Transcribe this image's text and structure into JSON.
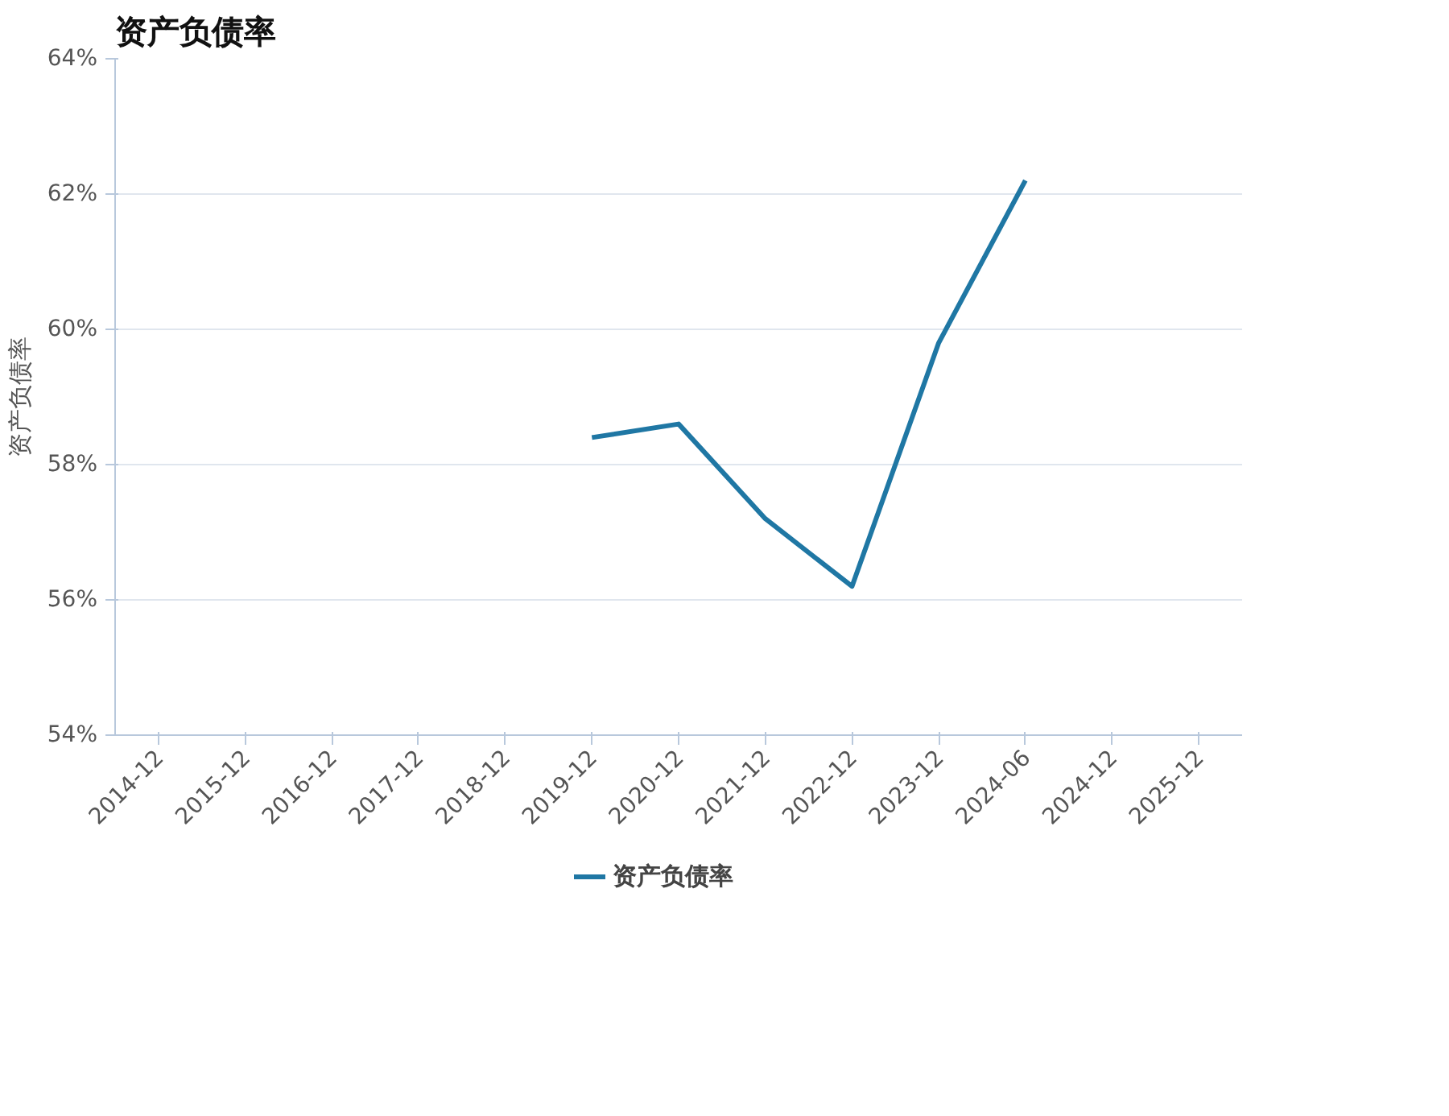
{
  "chart_data": {
    "type": "line",
    "title": "资产负债率",
    "ylabel": "资产负债率",
    "categories": [
      "2014-12",
      "2015-12",
      "2016-12",
      "2017-12",
      "2018-12",
      "2019-12",
      "2020-12",
      "2021-12",
      "2022-12",
      "2023-12",
      "2024-06",
      "2024-12",
      "2025-12"
    ],
    "series": [
      {
        "name": "资产负债率",
        "color": "#1f77a4",
        "values": [
          null,
          null,
          null,
          null,
          null,
          58.4,
          58.6,
          57.2,
          56.2,
          59.8,
          62.2,
          null,
          null
        ]
      }
    ],
    "ylim": [
      54,
      64
    ],
    "yticks": [
      {
        "value": 54,
        "label": "54%"
      },
      {
        "value": 56,
        "label": "56%"
      },
      {
        "value": 58,
        "label": "58%"
      },
      {
        "value": 60,
        "label": "60%"
      },
      {
        "value": 62,
        "label": "62%"
      },
      {
        "value": 64,
        "label": "64%"
      }
    ],
    "grid": "y",
    "legend": "bottom",
    "line_style": "solid",
    "marker": "none"
  }
}
